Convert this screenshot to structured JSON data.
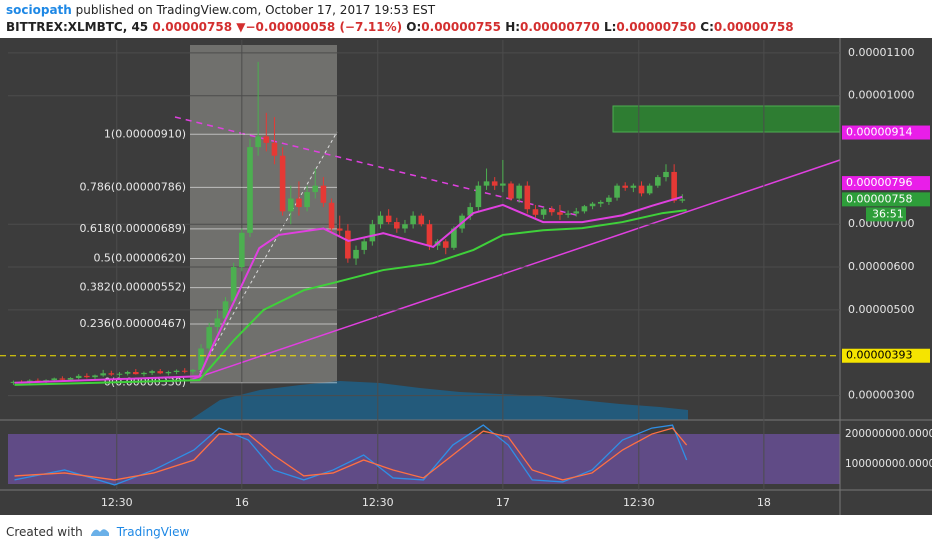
{
  "header": {
    "author": "sociopath",
    "published": "published on TradingView.com, October 17, 2017 19:53 EST",
    "symbol": "BITTREX:XLMBTC, 45",
    "last": "0.00000758",
    "arrow": "▼",
    "change": "−0.00000058 (−7.11%)",
    "o_label": "O:",
    "o": "0.00000755",
    "h_label": "H:",
    "h": "0.00000770",
    "l_label": "L:",
    "l": "0.00000750",
    "c_label": "C:",
    "c": "0.00000758"
  },
  "footer": {
    "created": "Created with",
    "brand": "TradingView"
  },
  "chart_data": [
    {
      "type": "candlestick",
      "up_color": "#4caf50",
      "down_color": "#e53935",
      "grid": true,
      "xlim": [
        2.5,
        79
      ],
      "ylim": [
        2.43e-06,
        1.13e-05
      ],
      "yticks": [
        {
          "value": 1.1e-05,
          "label": "0.00001100"
        },
        {
          "value": 1e-05,
          "label": "0.00001000"
        },
        {
          "value": 7e-06,
          "label": "0.00000700"
        },
        {
          "value": 6e-06,
          "label": "0.00000600"
        },
        {
          "value": 5e-06,
          "label": "0.00000500"
        },
        {
          "value": 3e-06,
          "label": "0.00000300"
        }
      ],
      "x": [
        3,
        3.75,
        4.5,
        5.25,
        6,
        6.75,
        7.5,
        8.25,
        9,
        9.75,
        10.5,
        11.25,
        12,
        12.75,
        13.5,
        14.25,
        15,
        15.75,
        16.5,
        17.25,
        18,
        18.75,
        19.5,
        20.25,
        21,
        21.75,
        22.5,
        23.25,
        24,
        24.75,
        25.5,
        26.25,
        27,
        27.75,
        28.5,
        29.25,
        30,
        30.75,
        31.5,
        32.25,
        33,
        33.75,
        34.5,
        35.25,
        36,
        36.75,
        37.5,
        38.25,
        39,
        39.75,
        40.5,
        41.25,
        42,
        42.75,
        43.5,
        44.25,
        45,
        45.75,
        46.5,
        47.25,
        48,
        48.75,
        49.5,
        50.25,
        51,
        51.75,
        52.5,
        53.25,
        54,
        54.75,
        55.5,
        56.25,
        57,
        57.75,
        58.5,
        59.25,
        60,
        60.75,
        61.5,
        62.25,
        63,
        63.75,
        64.5
      ],
      "open": [
        3.3e-06,
        3.32e-06,
        3.3e-06,
        3.35e-06,
        3.33e-06,
        3.36e-06,
        3.4e-06,
        3.37e-06,
        3.41e-06,
        3.46e-06,
        3.43e-06,
        3.47e-06,
        3.52e-06,
        3.49e-06,
        3.51e-06,
        3.55e-06,
        3.5e-06,
        3.53e-06,
        3.57e-06,
        3.52e-06,
        3.55e-06,
        3.58e-06,
        3.56e-06,
        3.6e-06,
        4.1e-06,
        4.6e-06,
        4.8e-06,
        5.2e-06,
        6e-06,
        6.8e-06,
        8.8e-06,
        9.05e-06,
        8.9e-06,
        8.6e-06,
        7.3e-06,
        7.6e-06,
        7.4e-06,
        7.75e-06,
        7.9e-06,
        7.5e-06,
        6.9e-06,
        6.85e-06,
        6.2e-06,
        6.4e-06,
        6.6e-06,
        7e-06,
        7.2e-06,
        7.05e-06,
        6.9e-06,
        7e-06,
        7.2e-06,
        7e-06,
        6.5e-06,
        6.6e-06,
        6.45e-06,
        6.9e-06,
        7.2e-06,
        7.4e-06,
        7.9e-06,
        8e-06,
        7.9e-06,
        7.95e-06,
        7.6e-06,
        7.9e-06,
        7.35e-06,
        7.22e-06,
        7.35e-06,
        7.28e-06,
        7.22e-06,
        7.25e-06,
        7.3e-06,
        7.42e-06,
        7.48e-06,
        7.52e-06,
        7.62e-06,
        7.9e-06,
        7.85e-06,
        7.9e-06,
        7.72e-06,
        7.9e-06,
        8.1e-06,
        8.22e-06,
        7.55e-06
      ],
      "high": [
        3.35e-06,
        3.36e-06,
        3.38e-06,
        3.4e-06,
        3.38e-06,
        3.42e-06,
        3.45e-06,
        3.43e-06,
        3.5e-06,
        3.52e-06,
        3.49e-06,
        3.6e-06,
        3.58e-06,
        3.55e-06,
        3.58e-06,
        3.62e-06,
        3.56e-06,
        3.6e-06,
        3.62e-06,
        3.58e-06,
        3.61e-06,
        3.64e-06,
        3.62e-06,
        4.2e-06,
        4.7e-06,
        5e-06,
        5.3e-06,
        6.1e-06,
        6.9e-06,
        9e-06,
        1.079e-05,
        9.6e-06,
        9.5e-06,
        8.8e-06,
        7.9e-06,
        8e-06,
        7.9e-06,
        8.3e-06,
        8.1e-06,
        7.6e-06,
        7.2e-06,
        7e-06,
        6.5e-06,
        6.7e-06,
        7.1e-06,
        7.3e-06,
        7.35e-06,
        7.15e-06,
        7.1e-06,
        7.3e-06,
        7.25e-06,
        7.1e-06,
        6.65e-06,
        6.65e-06,
        6.95e-06,
        7.25e-06,
        7.5e-06,
        8e-06,
        8.3e-06,
        8.1e-06,
        8.5e-06,
        8e-06,
        7.95e-06,
        8e-06,
        7.45e-06,
        7.4e-06,
        7.42e-06,
        7.45e-06,
        7.32e-06,
        7.38e-06,
        7.45e-06,
        7.52e-06,
        7.56e-06,
        7.68e-06,
        7.95e-06,
        7.98e-06,
        7.95e-06,
        8e-06,
        7.95e-06,
        8.15e-06,
        8.4e-06,
        8.4e-06,
        7.7e-06
      ],
      "low": [
        3.25e-06,
        3.28e-06,
        3.27e-06,
        3.3e-06,
        3.29e-06,
        3.32e-06,
        3.34e-06,
        3.33e-06,
        3.38e-06,
        3.4e-06,
        3.39e-06,
        3.44e-06,
        3.46e-06,
        3.44e-06,
        3.47e-06,
        3.49e-06,
        3.45e-06,
        3.48e-06,
        3.5e-06,
        3.47e-06,
        3.5e-06,
        3.52e-06,
        3.5e-06,
        3.55e-06,
        4e-06,
        4.45e-06,
        4.7e-06,
        5.1e-06,
        5.9e-06,
        6.7e-06,
        8.6e-06,
        8.7e-06,
        8.4e-06,
        7.2e-06,
        7e-06,
        7.2e-06,
        7.3e-06,
        7.6e-06,
        7.4e-06,
        6.8e-06,
        6.7e-06,
        6.1e-06,
        6.05e-06,
        6.3e-06,
        6.5e-06,
        6.9e-06,
        7e-06,
        6.8e-06,
        6.8e-06,
        6.9e-06,
        6.95e-06,
        6.4e-06,
        6.4e-06,
        6.3e-06,
        6.4e-06,
        6.8e-06,
        7.1e-06,
        7.3e-06,
        7.8e-06,
        7.8e-06,
        7.75e-06,
        7.55e-06,
        7.5e-06,
        7.25e-06,
        7.15e-06,
        7.12e-06,
        7.2e-06,
        7.1e-06,
        7.15e-06,
        7.18e-06,
        7.25e-06,
        7.35e-06,
        7.4e-06,
        7.45e-06,
        7.55e-06,
        7.78e-06,
        7.75e-06,
        7.65e-06,
        7.68e-06,
        7.85e-06,
        8e-06,
        7.5e-06,
        7.5e-06
      ],
      "close": [
        3.32e-06,
        3.3e-06,
        3.35e-06,
        3.33e-06,
        3.36e-06,
        3.4e-06,
        3.37e-06,
        3.41e-06,
        3.46e-06,
        3.43e-06,
        3.47e-06,
        3.52e-06,
        3.49e-06,
        3.51e-06,
        3.55e-06,
        3.5e-06,
        3.53e-06,
        3.57e-06,
        3.52e-06,
        3.55e-06,
        3.58e-06,
        3.56e-06,
        3.6e-06,
        4.1e-06,
        4.6e-06,
        4.8e-06,
        5.2e-06,
        6e-06,
        6.8e-06,
        8.8e-06,
        9.05e-06,
        8.9e-06,
        8.6e-06,
        7.3e-06,
        7.6e-06,
        7.4e-06,
        7.75e-06,
        7.9e-06,
        7.5e-06,
        6.9e-06,
        6.85e-06,
        6.2e-06,
        6.4e-06,
        6.6e-06,
        7e-06,
        7.2e-06,
        7.05e-06,
        6.9e-06,
        7e-06,
        7.2e-06,
        7e-06,
        6.5e-06,
        6.6e-06,
        6.45e-06,
        6.9e-06,
        7.2e-06,
        7.4e-06,
        7.9e-06,
        8e-06,
        7.9e-06,
        7.95e-06,
        7.6e-06,
        7.9e-06,
        7.35e-06,
        7.22e-06,
        7.35e-06,
        7.28e-06,
        7.22e-06,
        7.25e-06,
        7.3e-06,
        7.42e-06,
        7.48e-06,
        7.52e-06,
        7.62e-06,
        7.9e-06,
        7.85e-06,
        7.9e-06,
        7.72e-06,
        7.9e-06,
        8.1e-06,
        8.22e-06,
        7.55e-06,
        7.58e-06
      ],
      "lines": [
        {
          "color": "#e040e0",
          "x": [
            3.1,
            20.1,
            21.4,
            23.3,
            25.6,
            27.4,
            31.5,
            33.8,
            37,
            41.6,
            45.3,
            48,
            51.7,
            55.3,
            59,
            61.7,
            64.5
          ],
          "values": [
            3.3e-06,
            3.45e-06,
            4.2e-06,
            5.2e-06,
            6.44e-06,
            6.75e-06,
            6.9e-06,
            6.61e-06,
            6.79e-06,
            6.47e-06,
            7.26e-06,
            7.45e-06,
            7.05e-06,
            7.05e-06,
            7.21e-06,
            7.43e-06,
            7.64e-06
          ]
        },
        {
          "color": "#3fd13a",
          "x": [
            3.1,
            20.1,
            23.3,
            26,
            29.7,
            32.4,
            37,
            41.6,
            45.3,
            48,
            51.7,
            55.3,
            59,
            62.7,
            64.9
          ],
          "values": [
            3.25e-06,
            3.36e-06,
            4.3e-06,
            5e-06,
            5.46e-06,
            5.63e-06,
            5.93e-06,
            6.09e-06,
            6.4e-06,
            6.75e-06,
            6.86e-06,
            6.91e-06,
            7.05e-06,
            7.26e-06,
            7.33e-06
          ]
        }
      ],
      "fib_levels": [
        {
          "label": "1(0.00000910)",
          "value": 9.1e-06
        },
        {
          "label": "0.786(0.00000786)",
          "value": 7.86e-06
        },
        {
          "label": "0.618(0.00000689)",
          "value": 6.89e-06
        },
        {
          "label": "0.5(0.00000620)",
          "value": 6.2e-06
        },
        {
          "label": "0.382(0.00000552)",
          "value": 5.52e-06
        },
        {
          "label": "0.236(0.00000467)",
          "value": 4.67e-06
        },
        {
          "label": "0(0.00000330)",
          "value": 3.3e-06
        }
      ],
      "price_tags": [
        {
          "label": "0.00000914",
          "value": 9.14e-06,
          "color": "#e91ee9"
        },
        {
          "label": "0.00000796",
          "value": 7.96e-06,
          "color": "#e91ee9"
        },
        {
          "label": "0.00000758",
          "value": 7.58e-06,
          "color": "#2e9e3a",
          "countdown": "36:51"
        },
        {
          "label": "0.00000393",
          "value": 3.93e-06,
          "color": "#f5e400",
          "dashed_line": true
        }
      ]
    },
    {
      "type": "line",
      "grid": true,
      "xlim": [
        2.5,
        79
      ],
      "ylim": [
        13000000,
        247000000
      ],
      "xticks": [
        {
          "value": 12.5,
          "label": "12:30"
        },
        {
          "value": 24,
          "label": "16"
        },
        {
          "value": 36.5,
          "label": "12:30"
        },
        {
          "value": 48,
          "label": "17"
        },
        {
          "value": 60.5,
          "label": "12:30"
        },
        {
          "value": 72,
          "label": "18"
        }
      ],
      "yticks": [
        {
          "value": 200000000,
          "label": "200000000.0000"
        },
        {
          "value": 100000000,
          "label": "100000000.0000"
        }
      ],
      "series": [
        {
          "color": "#2f8fe6",
          "x": [
            3.1,
            7.7,
            12.3,
            15.9,
            19.6,
            21.9,
            24.6,
            26.9,
            29.7,
            32.4,
            35.2,
            37.9,
            40.7,
            43.4,
            46.2,
            48.5,
            50.7,
            53.5,
            56.2,
            59,
            61.7,
            63.6,
            64.9
          ],
          "values": [
            46700000,
            80000000,
            30000000,
            80000000,
            146700000,
            220000000,
            180000000,
            80000000,
            46700000,
            80000000,
            130000000,
            53300000,
            46700000,
            163300000,
            230000000,
            163300000,
            46700000,
            40000000,
            80000000,
            180000000,
            220000000,
            230000000,
            113300000
          ]
        },
        {
          "color": "#ff7043",
          "x": [
            3.1,
            7.7,
            12.3,
            15.9,
            19.6,
            21.9,
            24.6,
            26.9,
            29.7,
            32.4,
            35.2,
            37.9,
            40.7,
            43.4,
            46.2,
            48.5,
            50.7,
            53.5,
            56.2,
            59,
            61.7,
            63.6,
            64.9
          ],
          "values": [
            60000000,
            70000000,
            46700000,
            70000000,
            113300000,
            200000000,
            200000000,
            130000000,
            60000000,
            70000000,
            113300000,
            80000000,
            53300000,
            130000000,
            210000000,
            190000000,
            80000000,
            46700000,
            70000000,
            146700000,
            200000000,
            220000000,
            163300000
          ]
        }
      ]
    }
  ]
}
